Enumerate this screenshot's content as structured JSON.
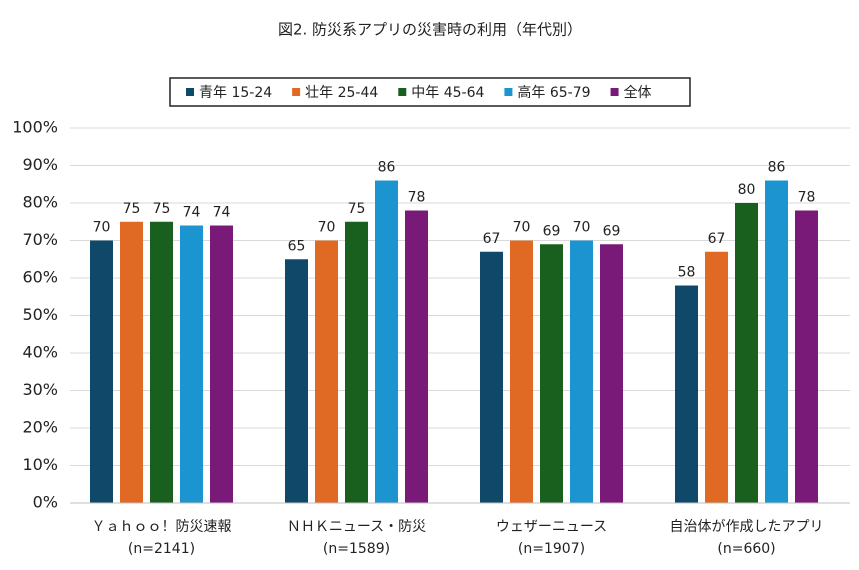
{
  "chart_data": {
    "type": "bar",
    "title": "図2. 防災系アプリの災害時の利用（年代別）",
    "categories": [
      [
        "Ｙａｈｏｏ！防災速報",
        "(n=2141)"
      ],
      [
        "ＮＨＫニュース・防災",
        "(n=1589)"
      ],
      [
        "ウェザーニュース",
        "(n=1907)"
      ],
      [
        "自治体が作成したアプリ",
        "(n=660)"
      ]
    ],
    "series": [
      {
        "name": "青年 15-24",
        "color": "#0f4868",
        "values": [
          70,
          65,
          67,
          58
        ]
      },
      {
        "name": "壮年 25-44",
        "color": "#e06a23",
        "values": [
          75,
          70,
          70,
          67
        ]
      },
      {
        "name": "中年 45-64",
        "color": "#19601f",
        "values": [
          75,
          75,
          69,
          80
        ]
      },
      {
        "name": "高年 65-79",
        "color": "#1b94cf",
        "values": [
          74,
          86,
          70,
          86
        ]
      },
      {
        "name": "全体",
        "color": "#7a1a78",
        "values": [
          74,
          78,
          69,
          78
        ]
      }
    ],
    "ylim": [
      0,
      100
    ],
    "yticks": [
      {
        "value": 0,
        "label": "0%"
      },
      {
        "value": 10,
        "label": "10%"
      },
      {
        "value": 20,
        "label": "20%"
      },
      {
        "value": 30,
        "label": "30%"
      },
      {
        "value": 40,
        "label": "40%"
      },
      {
        "value": 50,
        "label": "50%"
      },
      {
        "value": 60,
        "label": "60%"
      },
      {
        "value": 70,
        "label": "70%"
      },
      {
        "value": 80,
        "label": "80%"
      },
      {
        "value": 90,
        "label": "90%"
      },
      {
        "value": 100,
        "label": "100%"
      }
    ],
    "grid": true,
    "legend": "top"
  }
}
